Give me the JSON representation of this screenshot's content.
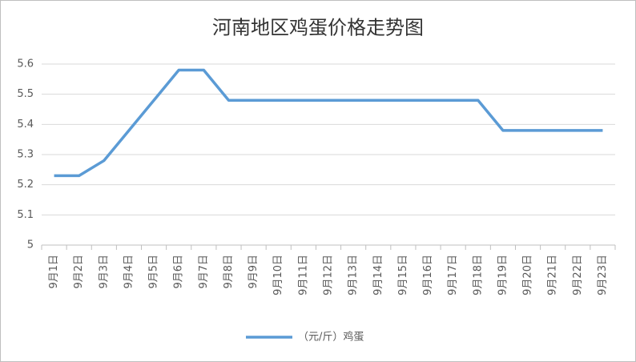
{
  "chart_data": {
    "type": "line",
    "title": "河南地区鸡蛋价格走势图",
    "categories": [
      "9月1日",
      "9月2日",
      "9月3日",
      "9月4日",
      "9月5日",
      "9月6日",
      "9月7日",
      "9月8日",
      "9月9日",
      "9月10日",
      "9月11日",
      "9月12日",
      "9月13日",
      "9月14日",
      "9月15日",
      "9月16日",
      "9月17日",
      "9月18日",
      "9月19日",
      "9月20日",
      "9月21日",
      "9月22日",
      "9月23日"
    ],
    "series": [
      {
        "name": "（元/斤）鸡蛋",
        "color": "#5b9bd5",
        "values": [
          5.23,
          5.23,
          5.28,
          5.38,
          5.48,
          5.58,
          5.58,
          5.48,
          5.48,
          5.48,
          5.48,
          5.48,
          5.48,
          5.48,
          5.48,
          5.48,
          5.48,
          5.48,
          5.38,
          5.38,
          5.38,
          5.38,
          5.38
        ]
      }
    ],
    "ylim": [
      5,
      5.6
    ],
    "yticks": [
      5,
      5.1,
      5.2,
      5.3,
      5.4,
      5.5,
      5.6
    ],
    "grid": true,
    "legend": "bottom"
  }
}
